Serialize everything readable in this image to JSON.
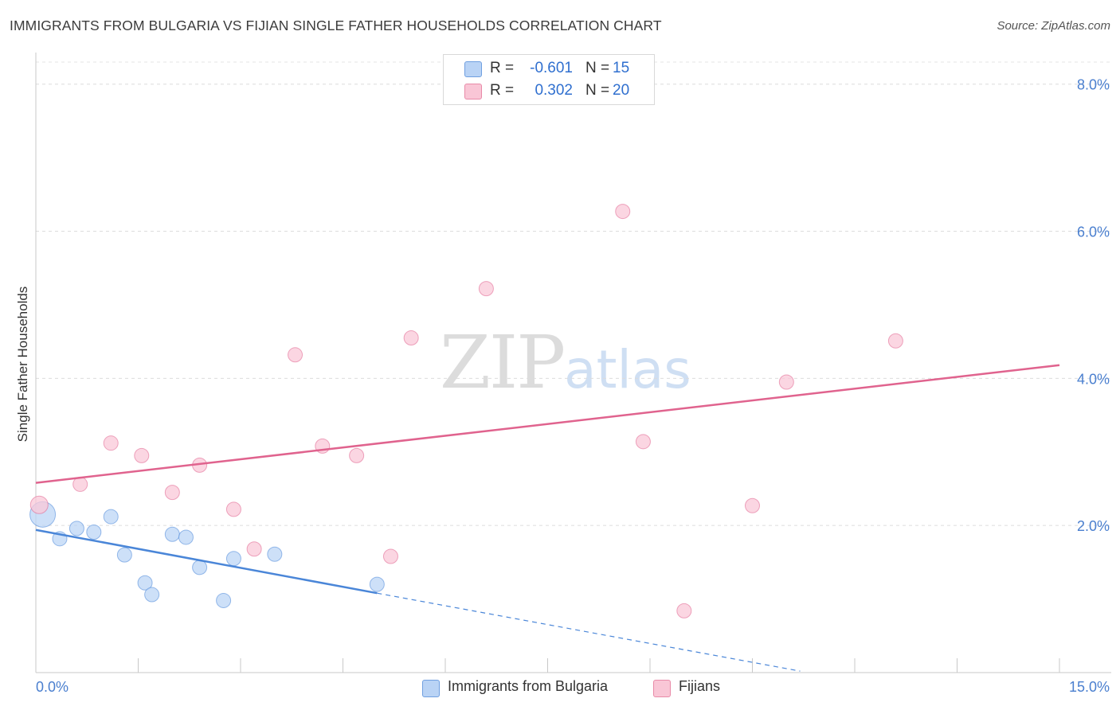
{
  "header": {
    "title": "IMMIGRANTS FROM BULGARIA VS FIJIAN SINGLE FATHER HOUSEHOLDS CORRELATION CHART",
    "source": "Source: ZipAtlas.com"
  },
  "watermark": {
    "zip": "ZIP",
    "atlas": "atlas"
  },
  "legend": {
    "rows": [
      {
        "r_label": "R =",
        "r_value": "-0.601",
        "n_label": "N =",
        "n_value": "15",
        "color": "#b9d3f5"
      },
      {
        "r_label": "R =",
        "r_value": "0.302",
        "n_label": "N =",
        "n_value": "20",
        "color": "#f9c6d6"
      }
    ]
  },
  "bottom_legend": {
    "items": [
      {
        "label": "Immigrants from Bulgaria",
        "color": "#b9d3f5"
      },
      {
        "label": "Fijians",
        "color": "#f9c6d6"
      }
    ]
  },
  "chart_data": {
    "type": "scatter",
    "title": "IMMIGRANTS FROM BULGARIA VS FIJIAN SINGLE FATHER HOUSEHOLDS CORRELATION CHART",
    "xlabel": "",
    "ylabel": "Single Father Households",
    "xlim": [
      0,
      15
    ],
    "ylim": [
      0,
      8.3
    ],
    "x_tick_labels": [
      "0.0%",
      "15.0%"
    ],
    "y_ticks": [
      2,
      4,
      6,
      8
    ],
    "y_tick_labels": [
      "2.0%",
      "4.0%",
      "6.0%",
      "8.0%"
    ],
    "grid": true,
    "series": [
      {
        "name": "Immigrants from Bulgaria",
        "color": "#4a86d8",
        "fill": "#bcd5f5",
        "points": [
          [
            0.1,
            2.15,
            16
          ],
          [
            0.35,
            1.82,
            9
          ],
          [
            0.6,
            1.96,
            9
          ],
          [
            0.85,
            1.91,
            9
          ],
          [
            1.1,
            2.12,
            9
          ],
          [
            1.3,
            1.6,
            9
          ],
          [
            1.6,
            1.22,
            9
          ],
          [
            1.7,
            1.06,
            9
          ],
          [
            2.0,
            1.88,
            9
          ],
          [
            2.2,
            1.84,
            9
          ],
          [
            2.4,
            1.43,
            9
          ],
          [
            2.75,
            0.98,
            9
          ],
          [
            2.9,
            1.55,
            9
          ],
          [
            3.5,
            1.61,
            9
          ],
          [
            5.0,
            1.2,
            9
          ]
        ],
        "trend": {
          "x": [
            0,
            5.0
          ],
          "y": [
            1.94,
            1.08
          ]
        },
        "trend_extension": {
          "x": [
            5.0,
            11.2
          ],
          "y": [
            1.08,
            0.02
          ]
        }
      },
      {
        "name": "Fijians",
        "color": "#e0638e",
        "fill": "#f9c8d8",
        "points": [
          [
            0.05,
            2.28,
            11
          ],
          [
            0.65,
            2.56,
            9
          ],
          [
            1.1,
            3.12,
            9
          ],
          [
            1.55,
            2.95,
            9
          ],
          [
            2.0,
            2.45,
            9
          ],
          [
            2.4,
            2.82,
            9
          ],
          [
            2.9,
            2.22,
            9
          ],
          [
            3.2,
            1.68,
            9
          ],
          [
            3.8,
            4.32,
            9
          ],
          [
            4.2,
            3.08,
            9
          ],
          [
            4.7,
            2.95,
            9
          ],
          [
            5.2,
            1.58,
            9
          ],
          [
            5.5,
            4.55,
            9
          ],
          [
            6.6,
            5.22,
            9
          ],
          [
            8.6,
            6.27,
            9
          ],
          [
            8.9,
            3.14,
            9
          ],
          [
            9.5,
            0.84,
            9
          ],
          [
            10.5,
            2.27,
            9
          ],
          [
            11.0,
            3.95,
            9
          ],
          [
            12.6,
            4.51,
            9
          ]
        ],
        "trend": {
          "x": [
            0,
            15
          ],
          "y": [
            2.58,
            4.18
          ]
        }
      }
    ]
  }
}
